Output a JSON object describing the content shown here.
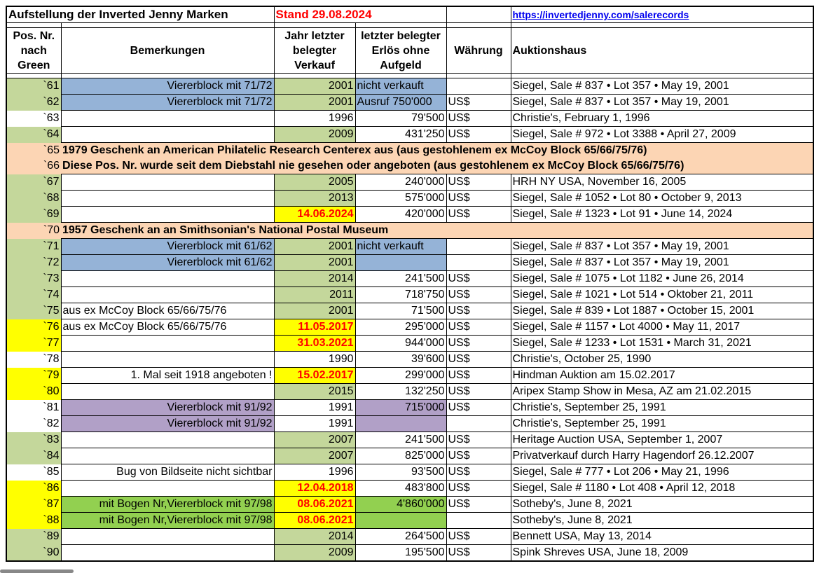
{
  "title": "Aufstellung der Inverted Jenny Marken",
  "stand": "Stand 29.08.2024",
  "link": "https://invertedjenny.com/salerecords",
  "headers": {
    "pos": "Pos. Nr. nach Green",
    "remark": "Bemerkungen",
    "year": "Jahr letzter belegter Verkauf",
    "price": "letzter belegter Erlös ohne Aufgeld",
    "currency": "Währung",
    "house": "Auktionshaus"
  },
  "colors": {
    "green": "#c4d79b",
    "blue": "#95b3d7",
    "peach": "#fcd5b4",
    "yellow": "#ffff00",
    "purple": "#b1a0c7",
    "lime": "#92d050",
    "red": "#ff0000"
  },
  "rows": [
    {
      "pos": "`61",
      "remark": "Viererblock mit 71/72",
      "year": "2001",
      "price": "nicht verkauft",
      "cur": "",
      "house": "Siegel, Sale # 837 • Lot 357 • May 19, 2001",
      "pc": "green",
      "yc": "green",
      "rc": "blue",
      "vc": "blue",
      "pl": true
    },
    {
      "pos": "`62",
      "remark": "Viererblock mit 71/72",
      "year": "2001",
      "price": "Ausruf 750'000",
      "cur": "US$",
      "house": "Siegel, Sale # 837 • Lot 357 • May 19, 2001",
      "pc": "green",
      "yc": "green",
      "rc": "blue",
      "vc": "blue",
      "pl": true
    },
    {
      "pos": "`63",
      "remark": "",
      "year": "1996",
      "price": "79'500",
      "cur": "US$",
      "house": "Christie's, February 1, 1996"
    },
    {
      "pos": "`64",
      "remark": "",
      "year": "2009",
      "price": "431'250",
      "cur": "US$",
      "house": "Siegel, Sale # 972 • Lot 3388 • April 27, 2009",
      "pc": "green",
      "yc": "green"
    },
    {
      "pos": "`65",
      "span": "1979 Geschenk an American Philatelic Research Centerex aus (aus gestohlenem ex McCoy Block 65/66/75/76)"
    },
    {
      "pos": "`66",
      "span": "Diese Pos. Nr. wurde seit dem Diebstahl nie gesehen oder angeboten (aus gestohlenem ex McCoy Block 65/66/75/76)"
    },
    {
      "pos": "`67",
      "remark": "",
      "year": "2005",
      "price": "240'000",
      "cur": "US$",
      "house": "HRH NY USA, November 16, 2005",
      "pc": "green",
      "yc": "green"
    },
    {
      "pos": "`68",
      "remark": "",
      "year": "2013",
      "price": "575'000",
      "cur": "US$",
      "house": "Siegel, Sale # 1052 • Lot 80 • October 9, 2013",
      "pc": "green",
      "yc": "green"
    },
    {
      "pos": "`69",
      "remark": "",
      "year": "14.06.2024",
      "price": "420'000",
      "cur": "US$",
      "house": "Siegel, Sale # 1323 • Lot 91 • June 14, 2024",
      "pc": "green",
      "yc": "yellow",
      "date": true
    },
    {
      "pos": "`70",
      "span": "1957 Geschenk an an Smithsonian's National Postal Museum"
    },
    {
      "pos": "`71",
      "remark": "Viererblock mit 61/62",
      "year": "2001",
      "price": "nicht verkauft",
      "cur": "",
      "house": "Siegel, Sale # 837 • Lot 357 • May 19, 2001",
      "pc": "green",
      "yc": "green",
      "rc": "blue",
      "vc": "blue",
      "pl": true
    },
    {
      "pos": "`72",
      "remark": "Viererblock mit 61/62",
      "year": "2001",
      "price": "",
      "cur": "",
      "house": "Siegel, Sale # 837 • Lot 357 • May 19, 2001",
      "pc": "green",
      "yc": "green",
      "rc": "blue",
      "vc": "blue"
    },
    {
      "pos": "`73",
      "remark": "",
      "year": "2014",
      "price": "241'500",
      "cur": "US$",
      "house": "Siegel, Sale # 1075 • Lot 1182 • June 26, 2014",
      "pc": "green",
      "yc": "green"
    },
    {
      "pos": "`74",
      "remark": "",
      "year": "2011",
      "price": "718'750",
      "cur": "US$",
      "house": "Siegel, Sale # 1021 • Lot 514 • Oktober 21, 2011",
      "pc": "green",
      "yc": "green"
    },
    {
      "pos": "`75",
      "remark": "aus ex McCoy Block 65/66/75/76",
      "year": "2001",
      "price": "71'500",
      "cur": "US$",
      "house": "Siegel, Sale # 839 • Lot 1887 • October 15, 2001",
      "pc": "green",
      "yc": "green",
      "rl": true
    },
    {
      "pos": "`76",
      "remark": "aus ex McCoy Block 65/66/75/76",
      "year": "11.05.2017",
      "price": "295'000",
      "cur": "US$",
      "house": "Siegel, Sale # 1157 • Lot 4000 • May 11, 2017",
      "pc": "yellow",
      "yc": "yellow",
      "rl": true,
      "date": true
    },
    {
      "pos": "`77",
      "remark": "",
      "year": "31.03.2021",
      "price": "944'000",
      "cur": "US$",
      "house": "Siegel, Sale # 1233 • Lot 1531 • March 31, 2021",
      "pc": "yellow",
      "yc": "yellow",
      "date": true
    },
    {
      "pos": "`78",
      "remark": "",
      "year": "1990",
      "price": "39'600",
      "cur": "US$",
      "house": "Christie's, October 25, 1990"
    },
    {
      "pos": "`79",
      "remark": "1. Mal seit 1918 angeboten !",
      "year": "15.02.2017",
      "price": "299'000",
      "cur": "US$",
      "house": "Hindman Auktion am 15.02.2017",
      "pc": "yellow",
      "yc": "yellow",
      "date": true
    },
    {
      "pos": "`80",
      "remark": "",
      "year": "2015",
      "price": "132'250",
      "cur": "US$",
      "house": "Aripex Stamp Show in Mesa, AZ am 21.02.2015",
      "pc": "yellow",
      "yc": "green"
    },
    {
      "pos": "`81",
      "remark": "Viererblock mit 91/92",
      "year": "1991",
      "price": "715'000",
      "cur": "US$",
      "house": "Christie's, September 25, 1991",
      "rc": "purple",
      "vc": "purple"
    },
    {
      "pos": "`82",
      "remark": "Viererblock mit 91/92",
      "year": "1991",
      "price": "",
      "cur": "",
      "house": "Christie's, September 25, 1991",
      "rc": "purple",
      "vc": "purple"
    },
    {
      "pos": "`83",
      "remark": "",
      "year": "2007",
      "price": "241'500",
      "cur": "US$",
      "house": "Heritage Auction USA, September 1, 2007",
      "pc": "green",
      "yc": "green"
    },
    {
      "pos": "`84",
      "remark": "",
      "year": "2007",
      "price": "825'000",
      "cur": "US$",
      "house": "Privatverkauf durch Harry Hagendorf 26.12.2007",
      "pc": "green",
      "yc": "green"
    },
    {
      "pos": "`85",
      "remark": "Bug von Bildseite nicht sichtbar",
      "year": "1996",
      "price": "93'500",
      "cur": "US$",
      "house": "Siegel, Sale # 777 • Lot 206 • May 21, 1996"
    },
    {
      "pos": "`86",
      "remark": "",
      "year": "12.04.2018",
      "price": "483'800",
      "cur": "US$",
      "house": "Siegel, Sale # 1180 • Lot 408 • April 12, 2018",
      "pc": "yellow",
      "yc": "yellow",
      "date": true
    },
    {
      "pos": "`87",
      "remark": "mit Bogen Nr,Viererblock mit 97/98",
      "year": "08.06.2021",
      "price": "4'860'000",
      "cur": "US$",
      "house": "Sotheby's, June 8, 2021",
      "pc": "yellow",
      "yc": "yellow",
      "rc": "lime",
      "vc": "lime",
      "date": true
    },
    {
      "pos": "`88",
      "remark": "mit Bogen Nr,Viererblock mit 97/98",
      "year": "08.06.2021",
      "price": "",
      "cur": "",
      "house": "Sotheby's, June 8, 2021",
      "pc": "yellow",
      "yc": "yellow",
      "rc": "lime",
      "vc": "lime",
      "date": true
    },
    {
      "pos": "`89",
      "remark": "",
      "year": "2014",
      "price": "264'500",
      "cur": "US$",
      "house": "Bennett USA, May 13, 2014",
      "pc": "green",
      "yc": "green"
    },
    {
      "pos": "`90",
      "remark": "",
      "year": "2009",
      "price": "195'500",
      "cur": "US$",
      "house": "Spink Shreves USA, June 18, 2009",
      "pc": "green",
      "yc": "green"
    }
  ]
}
